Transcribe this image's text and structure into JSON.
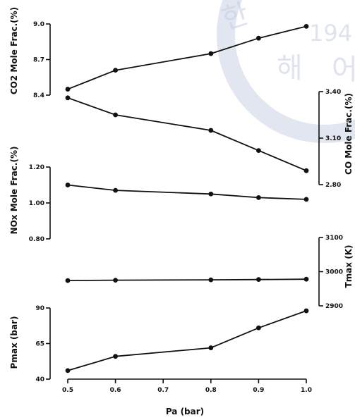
{
  "watermark": {
    "glyphs": [
      "한",
      "해",
      "194",
      "어"
    ],
    "color": "#c4cde2"
  },
  "chart_data": [
    {
      "type": "line",
      "ylabel": "CO2 Mole Frac.(%)",
      "ylim": [
        8.4,
        9.0
      ],
      "yticks": [
        "8.4",
        "8.7",
        "9.0"
      ],
      "axis_side": "left",
      "x": [
        0.5,
        0.6,
        0.8,
        0.9,
        1.0
      ],
      "series": [
        {
          "values": [
            8.45,
            8.61,
            8.75,
            8.88,
            8.98
          ]
        }
      ]
    },
    {
      "type": "line",
      "ylabel": "CO Mole Frac.(%)",
      "ylim": [
        2.8,
        3.4
      ],
      "yticks": [
        "2.80",
        "3.10",
        "3.40"
      ],
      "axis_side": "right",
      "x": [
        0.5,
        0.6,
        0.8,
        0.9,
        1.0
      ],
      "series": [
        {
          "values": [
            3.36,
            3.25,
            3.15,
            3.02,
            2.89
          ]
        }
      ]
    },
    {
      "type": "line",
      "ylabel": "NOx Mole Frac.(%)",
      "ylim": [
        0.8,
        1.2
      ],
      "yticks": [
        "0.80",
        "1.00",
        "1.20"
      ],
      "axis_side": "left",
      "x": [
        0.5,
        0.6,
        0.8,
        0.9,
        1.0
      ],
      "series": [
        {
          "values": [
            1.1,
            1.07,
            1.05,
            1.03,
            1.02
          ]
        }
      ]
    },
    {
      "type": "line",
      "ylabel": "Tmax (K)",
      "ylim": [
        2900,
        3100
      ],
      "yticks": [
        "2900",
        "3000",
        "3100"
      ],
      "axis_side": "right",
      "x": [
        0.5,
        0.6,
        0.8,
        0.9,
        1.0
      ],
      "series": [
        {
          "values": [
            2974,
            2975,
            2976,
            2977,
            2978
          ]
        }
      ]
    },
    {
      "type": "line",
      "ylabel": "Pmax (bar)",
      "ylim": [
        40,
        90
      ],
      "yticks": [
        "40",
        "65",
        "90"
      ],
      "axis_side": "left",
      "x": [
        0.5,
        0.6,
        0.8,
        0.9,
        1.0
      ],
      "series": [
        {
          "values": [
            46,
            56,
            62,
            76,
            88
          ]
        }
      ]
    }
  ],
  "x_axis": {
    "xlabel": "Pa (bar)",
    "tick_values": [
      0.5,
      0.6,
      0.7,
      0.8,
      0.9,
      1.0
    ],
    "tick_labels": [
      "0.5",
      "0.6",
      "0.7",
      "0.8",
      "0.9",
      "1.0"
    ]
  }
}
